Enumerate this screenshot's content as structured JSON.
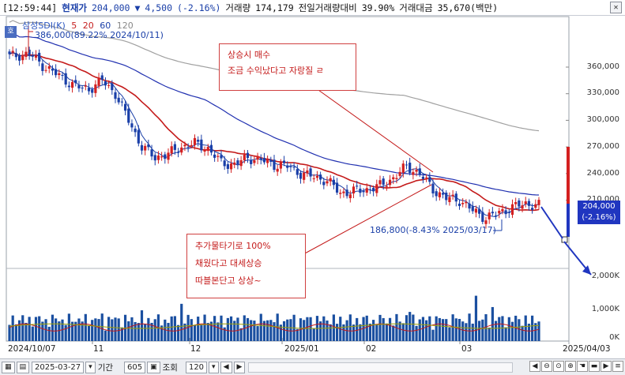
{
  "topbar": {
    "time": "[12:59:44]",
    "price_label": "현재가",
    "price": "204,000",
    "change_arrow": "▼",
    "change": "4,500",
    "change_pct": "(-2.16%)",
    "volume_label": "거래량",
    "volume": "174,179",
    "vol_ratio_label": "전일거래량대비",
    "vol_ratio": "39.90%",
    "amount_label": "거래대금",
    "amount": "35,670(백만)",
    "close_icon": "close-icon"
  },
  "legend": {
    "name": "삼성SDI(K)",
    "ma5": "5",
    "ma20": "20",
    "ma60": "60",
    "ma120": "120"
  },
  "labels": {
    "high": "386,000(89.22% 2024/10/11)",
    "low": "186,800(-8.43% 2025/03/17)"
  },
  "annotations": {
    "box1_line1": "상승시 매수",
    "box1_line2": "조금 수익났다고 자랑질 ㄹ",
    "box2_line1": "추가물타기로 100%",
    "box2_line2": "채웠다고 대세상승",
    "box2_line3": "따블본단고 상상~"
  },
  "yaxis": {
    "price_ticks": [
      "360,000",
      "330,000",
      "300,000",
      "270,000",
      "240,000",
      "210,000"
    ],
    "volume_ticks": [
      "2,000K",
      "1,000K",
      "0K"
    ],
    "current_price": "204,000",
    "current_pct": "(-2.16%)"
  },
  "xaxis": {
    "ticks": [
      "2024/10/07",
      "11",
      "12",
      "2025/01",
      "02",
      "03",
      "2025/04/03"
    ]
  },
  "bottombar": {
    "start_date": "2025-03-27",
    "period_label": "기간",
    "count": "605",
    "lookup_label": "조회",
    "bars": "120"
  },
  "colors": {
    "up": "#d42020",
    "down": "#1a3fa8",
    "ma20": "#c41a1a",
    "ma60": "#2030b0",
    "ma120": "#a0a0a0",
    "annotation": "#c41a1a",
    "volume_bar": "#1a4fa0"
  }
}
